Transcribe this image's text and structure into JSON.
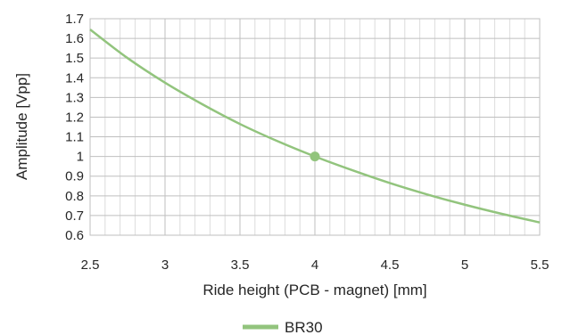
{
  "chart_data": {
    "type": "line",
    "xlabel": "Ride height (PCB - magnet) [mm]",
    "ylabel": "Amplitude [Vpp]",
    "xlim": [
      2.5,
      5.5
    ],
    "ylim": [
      0.6,
      1.7
    ],
    "x_ticks": [
      "2.5",
      "3",
      "3.5",
      "4",
      "4.5",
      "5",
      "5.5"
    ],
    "y_ticks": [
      "0.6",
      "0.7",
      "0.8",
      "0.9",
      "1",
      "1.1",
      "1.2",
      "1.3",
      "1.4",
      "1.5",
      "1.6",
      "1.7"
    ],
    "grid": true,
    "legend_position": "bottom",
    "series": [
      {
        "name": "BR30",
        "color": "#92c47d",
        "x": [
          2.5,
          2.75,
          3.0,
          3.25,
          3.5,
          3.75,
          4.0,
          4.25,
          4.5,
          4.75,
          5.0,
          5.25,
          5.5
        ],
        "y": [
          1.645,
          1.5,
          1.375,
          1.265,
          1.165,
          1.078,
          1.0,
          0.93,
          0.865,
          0.807,
          0.755,
          0.708,
          0.665
        ]
      }
    ],
    "highlight_point": {
      "x": 4,
      "y": 1
    }
  }
}
